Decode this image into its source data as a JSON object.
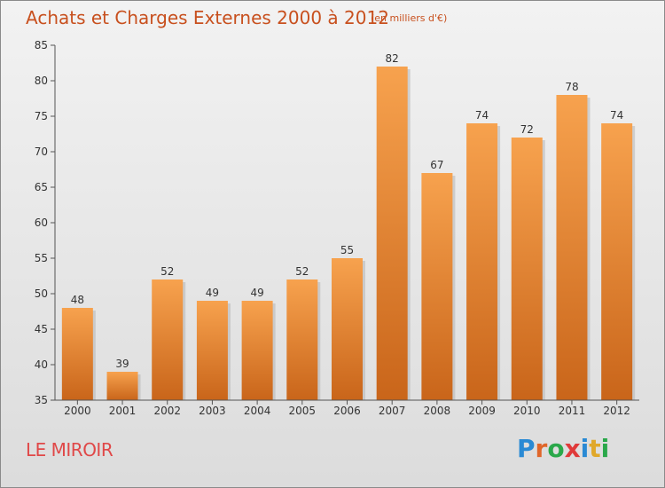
{
  "header": {
    "title": "Achats et Charges Externes 2000 à 2012",
    "subtitle": "(en milliers d'€)"
  },
  "footer": {
    "place": "LE MIROIR",
    "brand": "Proxiti",
    "brand_letter_colors": [
      "#2a8ad4",
      "#e0662a",
      "#2aa84a",
      "#e03a3a",
      "#2a8ad4",
      "#e0a82a",
      "#2aa84a"
    ]
  },
  "colors": {
    "bar_top": "#f7a24e",
    "bar_bottom": "#c9651a",
    "axis": "#555555",
    "grid": "#c8c8c8",
    "title": "#c8501e",
    "place": "#e04848"
  },
  "chart_data": {
    "type": "bar",
    "title": "Achats et Charges Externes 2000 à 2012",
    "subtitle": "(en milliers d'€)",
    "categories": [
      "2000",
      "2001",
      "2002",
      "2003",
      "2004",
      "2005",
      "2006",
      "2007",
      "2008",
      "2009",
      "2010",
      "2011",
      "2012"
    ],
    "values": [
      48,
      39,
      52,
      49,
      49,
      52,
      55,
      82,
      67,
      74,
      72,
      78,
      74
    ],
    "ylim": [
      35,
      85
    ],
    "yticks": [
      35,
      40,
      45,
      50,
      55,
      60,
      65,
      70,
      75,
      80,
      85
    ],
    "data_labels": true,
    "grid": false,
    "legend": "none"
  }
}
